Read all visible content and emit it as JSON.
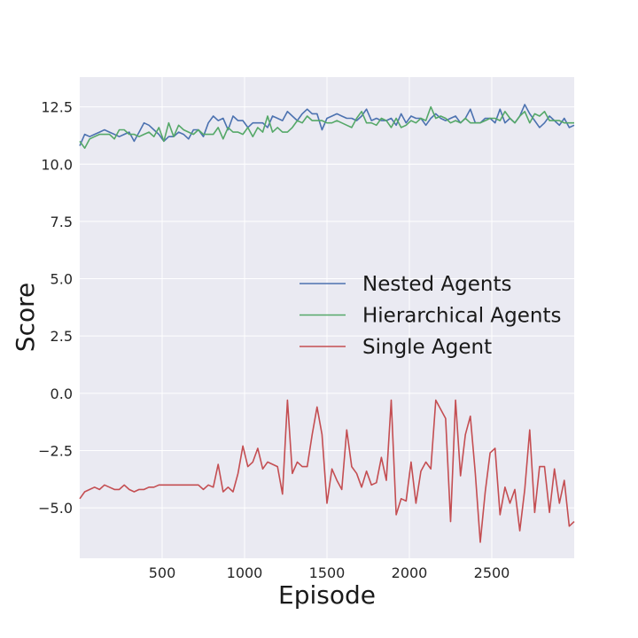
{
  "chart_data": {
    "type": "line",
    "xlabel": "Episode",
    "ylabel": "Score",
    "xlim": [
      0,
      3000
    ],
    "ylim": [
      -7.2,
      13.8
    ],
    "xticks": [
      500,
      1000,
      1500,
      2000,
      2500
    ],
    "xtick_labels": [
      "500",
      "1000",
      "1500",
      "2000",
      "2500"
    ],
    "yticks": [
      12.5,
      10.0,
      7.5,
      5.0,
      2.5,
      0.0,
      -2.5,
      -5.0
    ],
    "ytick_labels": [
      "12.5",
      "10.0",
      "7.5",
      "5.0",
      "2.5",
      "0.0",
      "−2.5",
      "−5.0"
    ],
    "grid": true,
    "legend_placement": "center-right",
    "style": "seaborn-dark",
    "colors": {
      "background": "#eaeaf2",
      "grid": "#ffffff"
    },
    "series": [
      {
        "name": "Nested Agents",
        "color": "#4c72b0",
        "x": [
          0,
          30,
          60,
          90,
          120,
          150,
          180,
          210,
          240,
          270,
          300,
          330,
          360,
          390,
          420,
          450,
          480,
          510,
          540,
          570,
          600,
          630,
          660,
          690,
          720,
          750,
          780,
          810,
          840,
          870,
          900,
          930,
          960,
          990,
          1020,
          1050,
          1080,
          1110,
          1140,
          1170,
          1200,
          1230,
          1260,
          1290,
          1320,
          1350,
          1380,
          1410,
          1440,
          1470,
          1500,
          1530,
          1560,
          1590,
          1620,
          1650,
          1680,
          1710,
          1740,
          1770,
          1800,
          1830,
          1860,
          1890,
          1920,
          1950,
          1980,
          2010,
          2040,
          2070,
          2100,
          2130,
          2160,
          2190,
          2220,
          2250,
          2280,
          2310,
          2340,
          2370,
          2400,
          2430,
          2460,
          2490,
          2520,
          2550,
          2580,
          2610,
          2640,
          2670,
          2700,
          2730,
          2760,
          2790,
          2820,
          2850,
          2880,
          2910,
          2940,
          2970,
          3000
        ],
        "values": [
          10.8,
          11.3,
          11.2,
          11.3,
          11.4,
          11.5,
          11.4,
          11.3,
          11.2,
          11.3,
          11.4,
          11.0,
          11.4,
          11.8,
          11.7,
          11.5,
          11.3,
          11.0,
          11.2,
          11.2,
          11.4,
          11.3,
          11.1,
          11.5,
          11.5,
          11.2,
          11.8,
          12.1,
          11.9,
          12.0,
          11.5,
          12.1,
          11.9,
          11.9,
          11.6,
          11.8,
          11.8,
          11.8,
          11.6,
          12.1,
          12.0,
          11.9,
          12.3,
          12.1,
          11.9,
          12.2,
          12.4,
          12.2,
          12.2,
          11.5,
          12.0,
          12.1,
          12.2,
          12.1,
          12.0,
          12.0,
          11.9,
          12.1,
          12.4,
          11.9,
          12.0,
          11.9,
          11.9,
          12.0,
          11.7,
          12.2,
          11.8,
          12.1,
          12.0,
          12.0,
          11.7,
          12.0,
          12.2,
          12.0,
          11.9,
          12.0,
          12.1,
          11.8,
          12.0,
          12.4,
          11.8,
          11.8,
          12.0,
          12.0,
          11.8,
          12.4,
          11.8,
          12.0,
          11.8,
          12.1,
          12.6,
          12.2,
          11.9,
          11.6,
          11.8,
          12.1,
          11.9,
          11.7,
          12.0,
          11.6,
          11.7
        ]
      },
      {
        "name": "Hierarchical Agents",
        "color": "#55a868",
        "x": [
          0,
          30,
          60,
          90,
          120,
          150,
          180,
          210,
          240,
          270,
          300,
          330,
          360,
          390,
          420,
          450,
          480,
          510,
          540,
          570,
          600,
          630,
          660,
          690,
          720,
          750,
          780,
          810,
          840,
          870,
          900,
          930,
          960,
          990,
          1020,
          1050,
          1080,
          1110,
          1140,
          1170,
          1200,
          1230,
          1260,
          1290,
          1320,
          1350,
          1380,
          1410,
          1440,
          1470,
          1500,
          1530,
          1560,
          1590,
          1620,
          1650,
          1680,
          1710,
          1740,
          1770,
          1800,
          1830,
          1860,
          1890,
          1920,
          1950,
          1980,
          2010,
          2040,
          2070,
          2100,
          2130,
          2160,
          2190,
          2220,
          2250,
          2280,
          2310,
          2340,
          2370,
          2400,
          2430,
          2460,
          2490,
          2520,
          2550,
          2580,
          2610,
          2640,
          2670,
          2700,
          2730,
          2760,
          2790,
          2820,
          2850,
          2880,
          2910,
          2940,
          2970,
          3000
        ],
        "values": [
          11.0,
          10.7,
          11.1,
          11.2,
          11.3,
          11.3,
          11.3,
          11.1,
          11.5,
          11.5,
          11.3,
          11.3,
          11.2,
          11.3,
          11.4,
          11.2,
          11.6,
          11.0,
          11.8,
          11.2,
          11.7,
          11.5,
          11.4,
          11.3,
          11.5,
          11.3,
          11.3,
          11.3,
          11.6,
          11.1,
          11.6,
          11.4,
          11.4,
          11.3,
          11.6,
          11.2,
          11.6,
          11.4,
          12.1,
          11.4,
          11.6,
          11.4,
          11.4,
          11.6,
          11.9,
          11.8,
          12.1,
          11.9,
          11.9,
          11.9,
          11.8,
          11.8,
          11.9,
          11.8,
          11.7,
          11.6,
          12.0,
          12.3,
          11.8,
          11.8,
          11.7,
          12.0,
          11.9,
          11.6,
          12.0,
          11.6,
          11.7,
          11.9,
          11.8,
          12.0,
          11.9,
          12.5,
          12.0,
          12.1,
          12.0,
          11.8,
          11.9,
          11.8,
          12.0,
          11.8,
          11.8,
          11.8,
          11.9,
          12.0,
          12.0,
          11.9,
          12.3,
          12.0,
          11.8,
          12.1,
          12.3,
          11.8,
          12.2,
          12.1,
          12.3,
          11.9,
          11.9,
          11.9,
          11.8,
          11.8,
          11.8
        ]
      },
      {
        "name": "Single Agent",
        "color": "#c44e52",
        "x": [
          0,
          30,
          60,
          90,
          120,
          150,
          180,
          210,
          240,
          270,
          300,
          330,
          360,
          390,
          420,
          450,
          480,
          510,
          540,
          570,
          600,
          630,
          660,
          690,
          720,
          750,
          780,
          810,
          840,
          870,
          900,
          930,
          960,
          990,
          1020,
          1050,
          1080,
          1110,
          1140,
          1170,
          1200,
          1230,
          1260,
          1290,
          1320,
          1350,
          1380,
          1410,
          1440,
          1470,
          1500,
          1530,
          1560,
          1590,
          1620,
          1650,
          1680,
          1710,
          1740,
          1770,
          1800,
          1830,
          1860,
          1890,
          1920,
          1950,
          1980,
          2010,
          2040,
          2070,
          2100,
          2130,
          2160,
          2190,
          2220,
          2250,
          2280,
          2310,
          2340,
          2370,
          2400,
          2430,
          2460,
          2490,
          2520,
          2550,
          2580,
          2610,
          2640,
          2670,
          2700,
          2730,
          2760,
          2790,
          2820,
          2850,
          2880,
          2910,
          2940,
          2970,
          3000
        ],
        "values": [
          -4.6,
          -4.3,
          -4.2,
          -4.1,
          -4.2,
          -4.0,
          -4.1,
          -4.2,
          -4.2,
          -4.0,
          -4.2,
          -4.3,
          -4.2,
          -4.2,
          -4.1,
          -4.1,
          -4.0,
          -4.0,
          -4.0,
          -4.0,
          -4.0,
          -4.0,
          -4.0,
          -4.0,
          -4.0,
          -4.2,
          -4.0,
          -4.1,
          -3.1,
          -4.3,
          -4.1,
          -4.3,
          -3.5,
          -2.3,
          -3.2,
          -3.0,
          -2.4,
          -3.3,
          -3.0,
          -3.1,
          -3.2,
          -4.4,
          -0.3,
          -3.5,
          -3.0,
          -3.2,
          -3.2,
          -1.8,
          -0.6,
          -1.8,
          -4.8,
          -3.3,
          -3.8,
          -4.2,
          -1.6,
          -3.2,
          -3.5,
          -4.1,
          -3.4,
          -4.0,
          -3.9,
          -2.8,
          -3.8,
          -0.3,
          -5.3,
          -4.6,
          -4.7,
          -3.0,
          -4.8,
          -3.4,
          -3.0,
          -3.3,
          -0.3,
          -0.7,
          -1.1,
          -5.6,
          -0.3,
          -3.6,
          -1.8,
          -1.0,
          -3.5,
          -6.5,
          -4.3,
          -2.6,
          -2.4,
          -5.3,
          -4.1,
          -4.8,
          -4.2,
          -6.0,
          -4.2,
          -1.6,
          -5.2,
          -3.2,
          -3.2,
          -5.2,
          -3.3,
          -4.8,
          -3.8,
          -5.8,
          -5.6
        ]
      }
    ]
  }
}
